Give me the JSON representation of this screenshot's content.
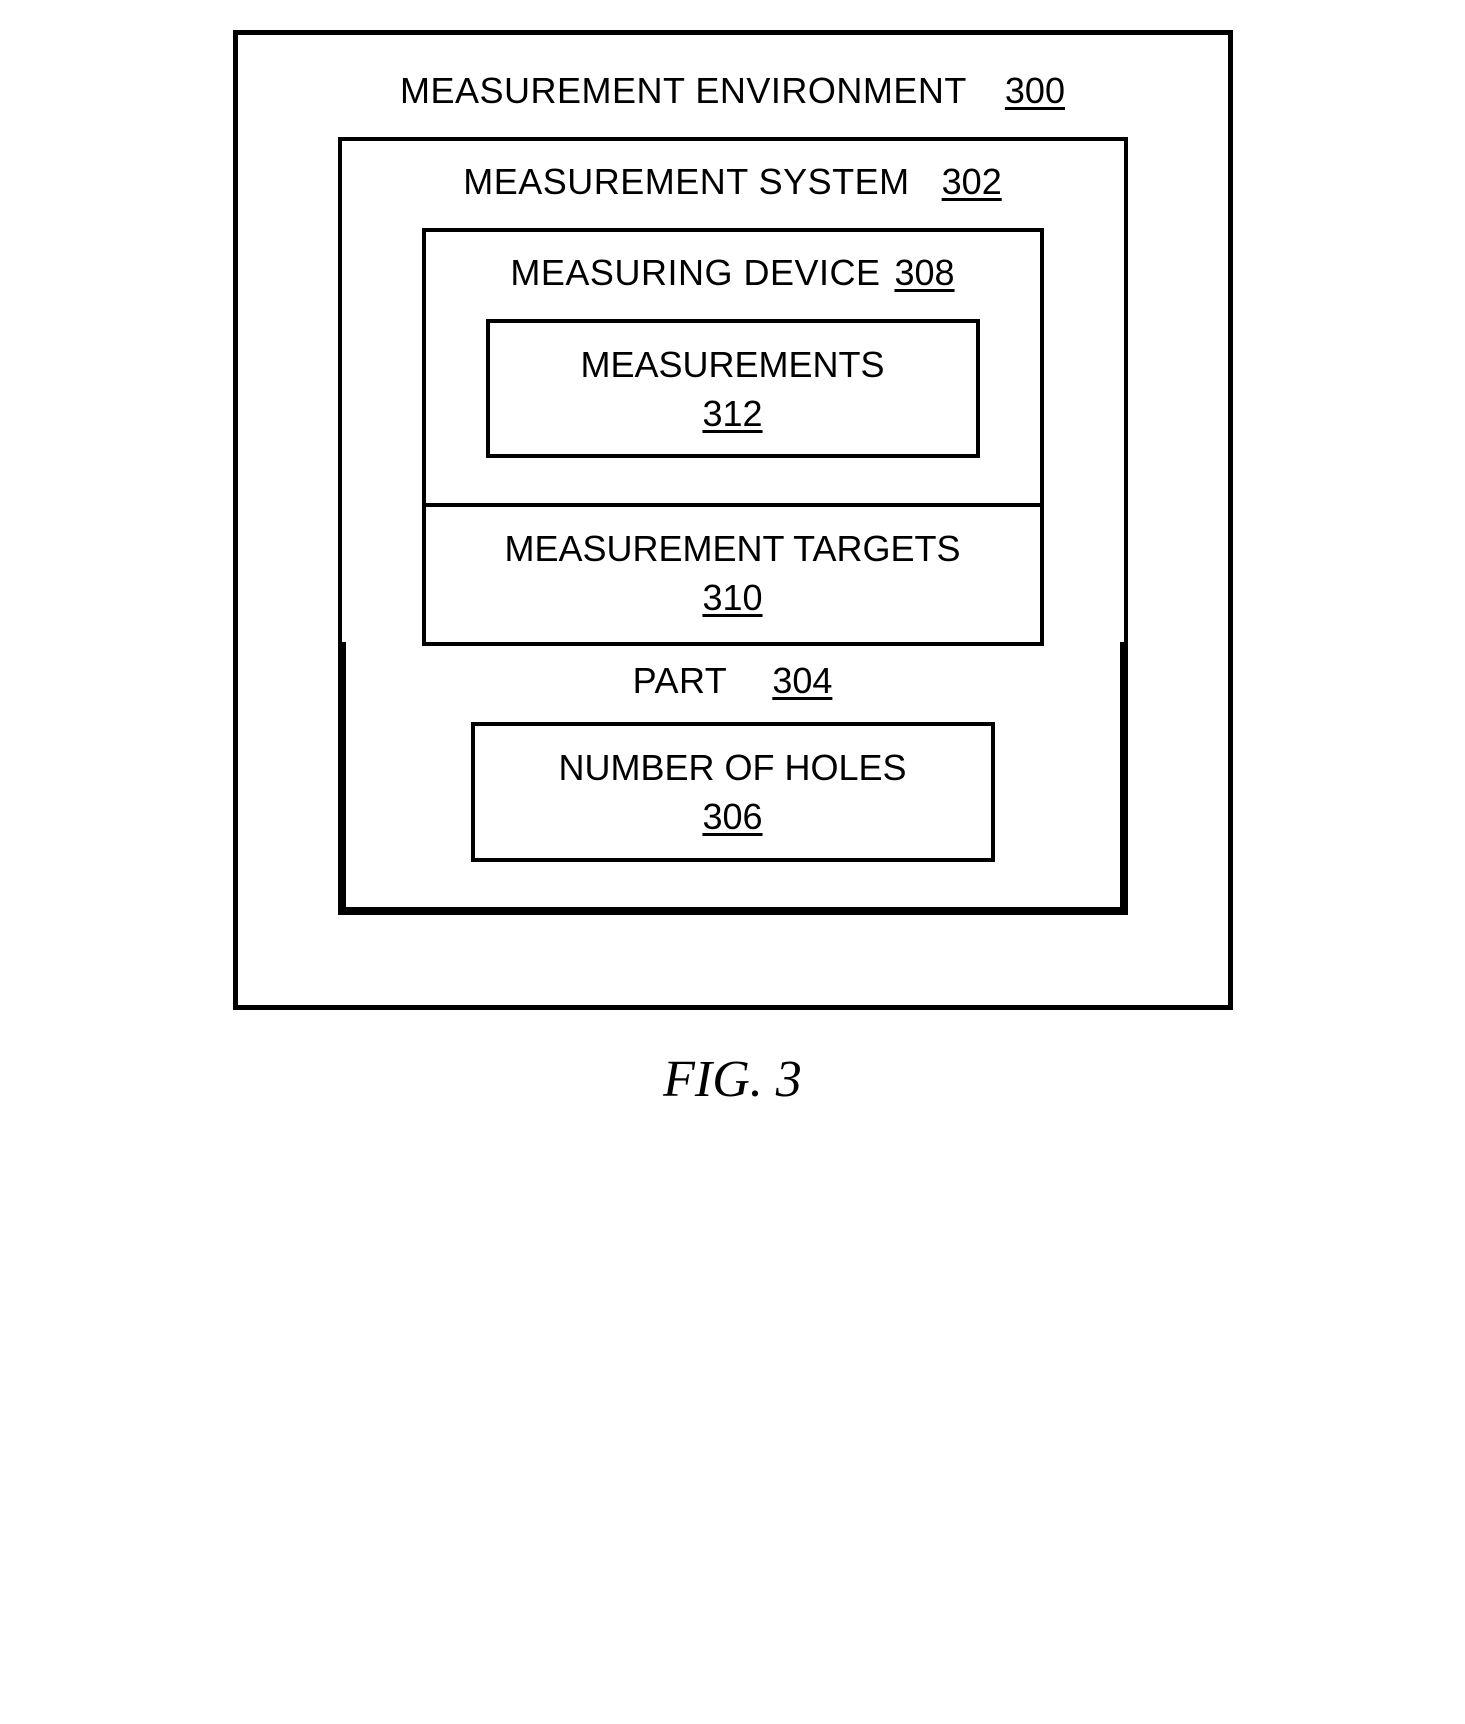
{
  "diagram": {
    "type": "block-diagram",
    "outer": {
      "title": "MEASUREMENT ENVIRONMENT",
      "ref": "300",
      "border_color": "#000000",
      "border_width": 5
    },
    "system": {
      "title": "MEASUREMENT SYSTEM",
      "ref": "302",
      "border_color": "#000000",
      "border_width": 4
    },
    "device": {
      "title": "MEASURING DEVICE",
      "ref": "308"
    },
    "measurements": {
      "title": "MEASUREMENTS",
      "ref": "312"
    },
    "targets": {
      "title": "MEASUREMENT TARGETS",
      "ref": "310"
    },
    "part": {
      "title": "PART",
      "ref": "304"
    },
    "holes": {
      "title": "NUMBER OF HOLES",
      "ref": "306"
    },
    "caption": "FIG. 3",
    "style": {
      "background_color": "#ffffff",
      "text_color": "#000000",
      "label_fontsize": 36,
      "caption_fontsize": 52,
      "caption_font": "Times New Roman italic",
      "body_font": "Arial"
    }
  }
}
